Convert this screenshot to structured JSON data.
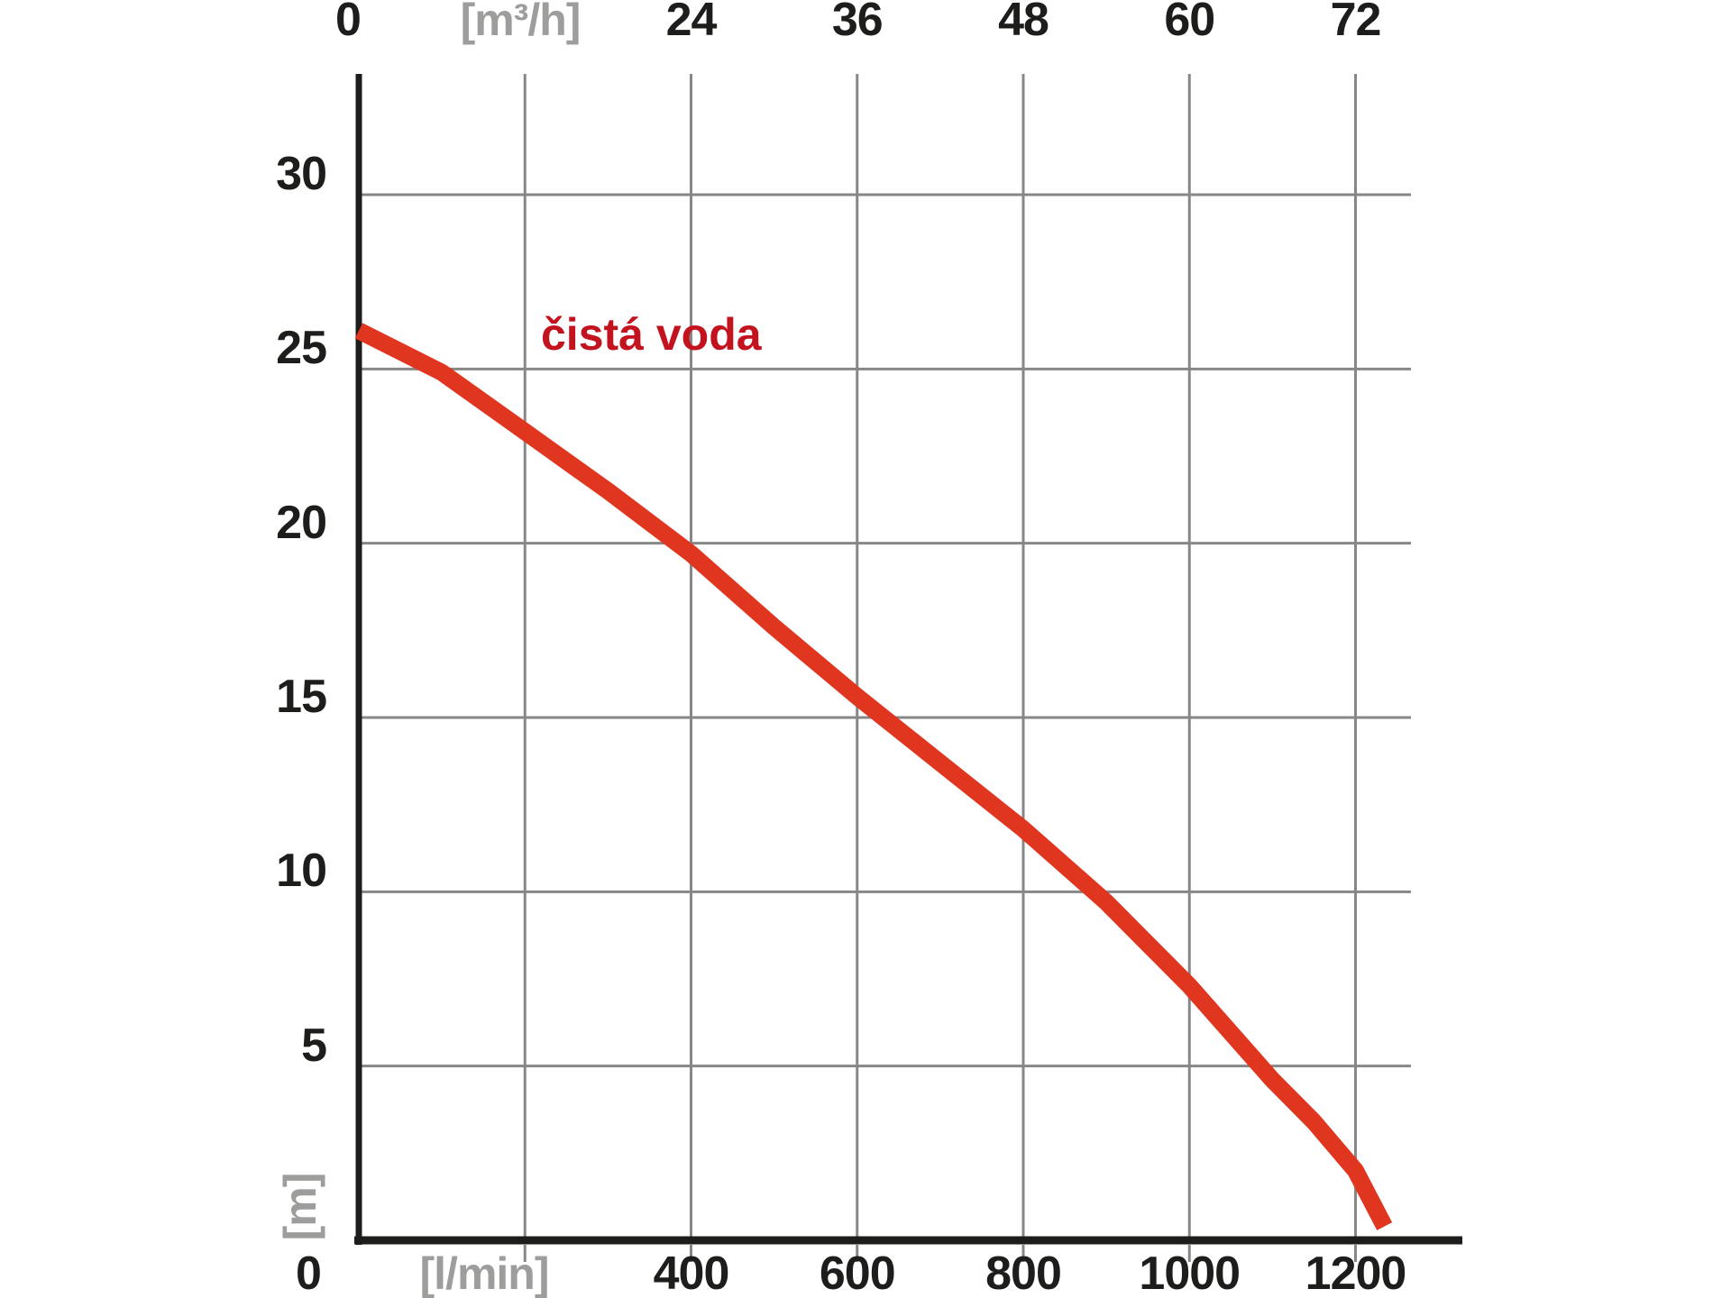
{
  "page": {
    "background": "#ffffff"
  },
  "chart_data": {
    "type": "line",
    "title": "",
    "series_label": "čistá voda",
    "series_color": "#e03620",
    "series_label_color": "#c3131f",
    "grid_color": "#878787",
    "axis_color": "#1d1d1b",
    "number_color": "#1d1d1b",
    "unit_color": "#9d9d9c",
    "grid": true,
    "top_axis": {
      "unit": "[m³/h]",
      "unit_replaces_value": 12,
      "origin_label": "0",
      "tick_values": [
        24,
        36,
        48,
        60,
        72
      ],
      "range": [
        0,
        75.6
      ]
    },
    "bottom_axis": {
      "unit": "[l/min]",
      "origin_label": "0",
      "tick_values": [
        400,
        600,
        800,
        1000,
        1200
      ],
      "gridline_values": [
        200,
        400,
        600,
        800,
        1000,
        1200
      ],
      "range": [
        0,
        1260
      ]
    },
    "left_axis": {
      "unit": "[m]",
      "tick_values": [
        30,
        25,
        20,
        15,
        10,
        5
      ],
      "gridline_values": [
        30,
        25,
        20,
        15,
        10,
        5
      ],
      "range": [
        0,
        33.5
      ]
    },
    "series": [
      {
        "name": "čistá voda",
        "x_unit": "l/min",
        "y_unit": "m",
        "points": [
          [
            0,
            26.1
          ],
          [
            100,
            24.9
          ],
          [
            200,
            23.2
          ],
          [
            300,
            21.5
          ],
          [
            400,
            19.7
          ],
          [
            500,
            17.6
          ],
          [
            600,
            15.6
          ],
          [
            700,
            13.7
          ],
          [
            800,
            11.8
          ],
          [
            900,
            9.7
          ],
          [
            1000,
            7.3
          ],
          [
            1100,
            4.6
          ],
          [
            1150,
            3.4
          ],
          [
            1200,
            2.0
          ],
          [
            1235,
            0.4
          ]
        ]
      }
    ],
    "legend_position": "inside-top-left"
  }
}
